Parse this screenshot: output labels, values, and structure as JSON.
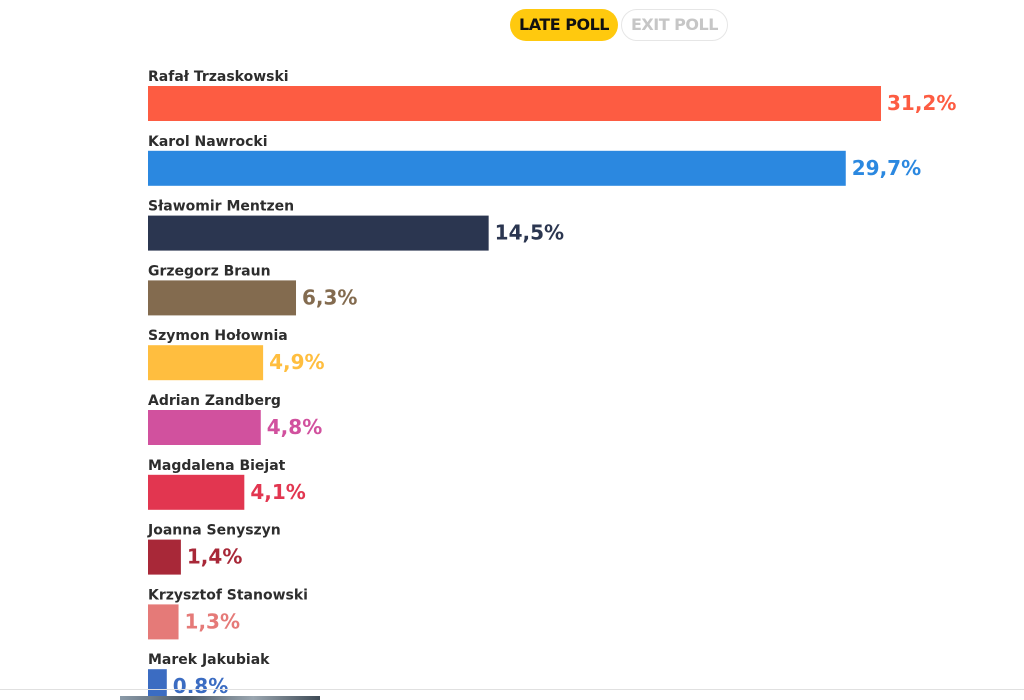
{
  "toggle": {
    "late_label": "LATE POLL",
    "exit_label": "EXIT POLL"
  },
  "chart_data": {
    "type": "bar",
    "orientation": "horizontal",
    "title": "",
    "xlabel": "",
    "ylabel": "",
    "xlim": [
      0,
      31.2
    ],
    "grid": false,
    "categories": [
      "Rafał Trzaskowski",
      "Karol Nawrocki",
      "Sławomir Mentzen",
      "Grzegorz Braun",
      "Szymon Hołownia",
      "Adrian Zandberg",
      "Magdalena Biejat",
      "Joanna Senyszyn",
      "Krzysztof Stanowski",
      "Marek Jakubiak"
    ],
    "values": [
      31.2,
      29.7,
      14.5,
      6.3,
      4.9,
      4.8,
      4.1,
      1.4,
      1.3,
      0.8
    ],
    "value_labels": [
      "31,2%",
      "29,7%",
      "14,5%",
      "6,3%",
      "4,9%",
      "4,8%",
      "4,1%",
      "1,4%",
      "1,3%",
      "0.8%"
    ],
    "colors": [
      "#fd5c42",
      "#2b88e0",
      "#2b3650",
      "#836b4f",
      "#ffbe3f",
      "#d1519e",
      "#e23650",
      "#a82838",
      "#e57a78",
      "#3b6cc2"
    ]
  }
}
